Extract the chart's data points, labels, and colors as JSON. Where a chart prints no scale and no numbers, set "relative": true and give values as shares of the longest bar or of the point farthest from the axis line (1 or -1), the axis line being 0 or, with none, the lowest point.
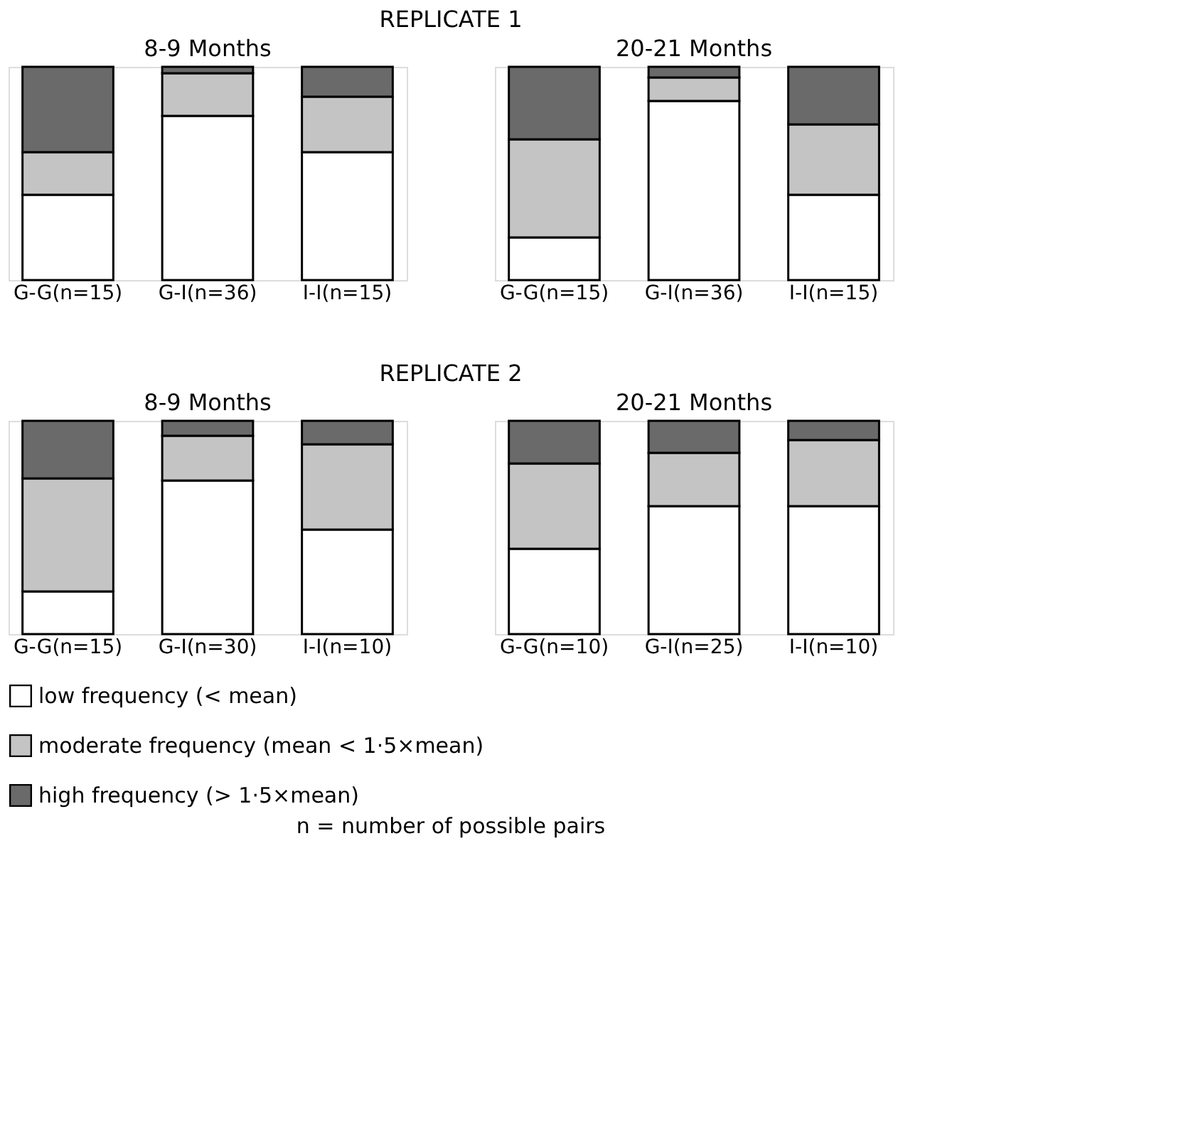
{
  "chart_data": [
    {
      "type": "bar",
      "title": "8-9 Months",
      "annotations": [
        "REPLICATE 1"
      ],
      "relative": true,
      "stacked": true,
      "legend": "bottom",
      "categories": [
        "G-G(n=15)",
        "G-I(n=36)",
        "I-I(n=15)"
      ],
      "series": [
        {
          "name": "low frequency (< mean)",
          "color": "#ffffff",
          "values": [
            0.4,
            0.77,
            0.6
          ]
        },
        {
          "name": "moderate frequency (mean < 1·5×mean)",
          "color": "#c4c4c4",
          "values": [
            0.2,
            0.2,
            0.26
          ]
        },
        {
          "name": "high frequency (> 1·5×mean)",
          "color": "#6a6a6a",
          "values": [
            0.4,
            0.03,
            0.14
          ]
        }
      ]
    },
    {
      "type": "bar",
      "title": "20-21 Months",
      "relative": true,
      "stacked": true,
      "categories": [
        "G-G(n=15)",
        "G-I(n=36)",
        "I-I(n=15)"
      ],
      "series": [
        {
          "color": "#ffffff",
          "values": [
            0.2,
            0.84,
            0.4
          ]
        },
        {
          "color": "#c4c4c4",
          "values": [
            0.46,
            0.11,
            0.33
          ]
        },
        {
          "color": "#6a6a6a",
          "values": [
            0.34,
            0.05,
            0.27
          ]
        }
      ]
    },
    {
      "type": "bar",
      "title": "8-9 Months",
      "annotations": [
        "REPLICATE 2"
      ],
      "relative": true,
      "stacked": true,
      "categories": [
        "G-G(n=15)",
        "G-I(n=30)",
        "I-I(n=10)"
      ],
      "series": [
        {
          "color": "#ffffff",
          "values": [
            0.2,
            0.72,
            0.49
          ]
        },
        {
          "color": "#c4c4c4",
          "values": [
            0.53,
            0.21,
            0.4
          ]
        },
        {
          "color": "#6a6a6a",
          "values": [
            0.27,
            0.07,
            0.11
          ]
        }
      ]
    },
    {
      "type": "bar",
      "title": "20-21 Months",
      "annotations": [
        "n = number of possible pairs"
      ],
      "relative": true,
      "stacked": true,
      "categories": [
        "G-G(n=10)",
        "G-I(n=25)",
        "I-I(n=10)"
      ],
      "series": [
        {
          "color": "#ffffff",
          "values": [
            0.4,
            0.6,
            0.6
          ]
        },
        {
          "color": "#c4c4c4",
          "values": [
            0.4,
            0.25,
            0.31
          ]
        },
        {
          "color": "#6a6a6a",
          "values": [
            0.2,
            0.15,
            0.09
          ]
        }
      ]
    }
  ]
}
